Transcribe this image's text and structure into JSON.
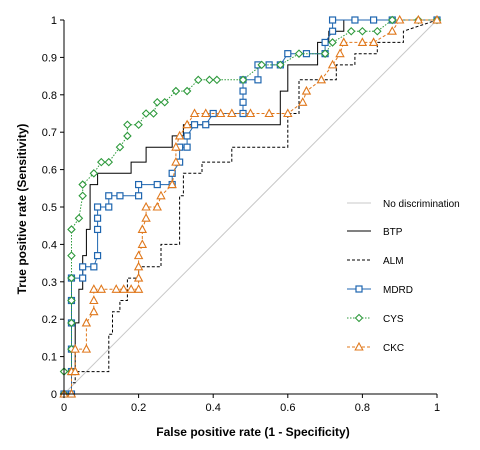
{
  "chart_data": {
    "type": "line",
    "xlabel": "False positive rate (1 - Specificity)",
    "ylabel": "True positive rate (Sensitivity)",
    "xlim": [
      0,
      1
    ],
    "ylim": [
      0,
      1
    ],
    "x_ticks": [
      "0",
      "0.2",
      "0.4",
      "0.6",
      "0.8",
      "1"
    ],
    "y_ticks": [
      "0",
      "0.1",
      "0.2",
      "0.3",
      "0.4",
      "0.5",
      "0.6",
      "0.7",
      "0.8",
      "0.9",
      "1"
    ],
    "grid": false,
    "legend_position": "right",
    "series": [
      {
        "name": "No discrimination",
        "color": "#c8c8c8",
        "style": "solid",
        "marker": "none",
        "points": [
          [
            0,
            0
          ],
          [
            1,
            1
          ]
        ]
      },
      {
        "name": "BTP",
        "color": "#000000",
        "style": "solid",
        "marker": "none",
        "points": [
          [
            0,
            0
          ],
          [
            0.02,
            0
          ],
          [
            0.02,
            0.06
          ],
          [
            0.03,
            0.06
          ],
          [
            0.03,
            0.19
          ],
          [
            0.04,
            0.19
          ],
          [
            0.04,
            0.28
          ],
          [
            0.05,
            0.28
          ],
          [
            0.05,
            0.37
          ],
          [
            0.06,
            0.37
          ],
          [
            0.06,
            0.44
          ],
          [
            0.07,
            0.44
          ],
          [
            0.07,
            0.56
          ],
          [
            0.09,
            0.56
          ],
          [
            0.09,
            0.59
          ],
          [
            0.18,
            0.59
          ],
          [
            0.18,
            0.62
          ],
          [
            0.22,
            0.62
          ],
          [
            0.22,
            0.66
          ],
          [
            0.29,
            0.66
          ],
          [
            0.29,
            0.69
          ],
          [
            0.32,
            0.69
          ],
          [
            0.32,
            0.72
          ],
          [
            0.58,
            0.72
          ],
          [
            0.58,
            0.81
          ],
          [
            0.6,
            0.81
          ],
          [
            0.6,
            0.88
          ],
          [
            0.68,
            0.88
          ],
          [
            0.68,
            0.94
          ],
          [
            0.71,
            0.94
          ],
          [
            0.71,
            0.97
          ],
          [
            0.75,
            0.97
          ],
          [
            0.75,
            1.0
          ],
          [
            1,
            1
          ]
        ]
      },
      {
        "name": "ALM",
        "color": "#000000",
        "style": "dashed",
        "marker": "none",
        "points": [
          [
            0,
            0
          ],
          [
            0.02,
            0
          ],
          [
            0.02,
            0.03
          ],
          [
            0.03,
            0.03
          ],
          [
            0.03,
            0.06
          ],
          [
            0.12,
            0.06
          ],
          [
            0.12,
            0.16
          ],
          [
            0.13,
            0.16
          ],
          [
            0.13,
            0.22
          ],
          [
            0.15,
            0.22
          ],
          [
            0.15,
            0.25
          ],
          [
            0.17,
            0.25
          ],
          [
            0.17,
            0.31
          ],
          [
            0.2,
            0.31
          ],
          [
            0.2,
            0.34
          ],
          [
            0.26,
            0.34
          ],
          [
            0.26,
            0.4
          ],
          [
            0.31,
            0.4
          ],
          [
            0.31,
            0.53
          ],
          [
            0.32,
            0.53
          ],
          [
            0.32,
            0.59
          ],
          [
            0.37,
            0.59
          ],
          [
            0.37,
            0.62
          ],
          [
            0.45,
            0.62
          ],
          [
            0.45,
            0.66
          ],
          [
            0.6,
            0.66
          ],
          [
            0.6,
            0.75
          ],
          [
            0.63,
            0.75
          ],
          [
            0.63,
            0.84
          ],
          [
            0.73,
            0.84
          ],
          [
            0.73,
            0.88
          ],
          [
            0.78,
            0.88
          ],
          [
            0.78,
            0.91
          ],
          [
            0.84,
            0.91
          ],
          [
            0.84,
            0.94
          ],
          [
            0.91,
            0.94
          ],
          [
            0.91,
            0.97
          ],
          [
            1,
            1
          ]
        ]
      },
      {
        "name": "MDRD",
        "color": "#1f66b0",
        "style": "solid",
        "marker": "square",
        "points": [
          [
            0,
            0
          ],
          [
            0.02,
            0
          ],
          [
            0.02,
            0.06
          ],
          [
            0.02,
            0.12
          ],
          [
            0.02,
            0.19
          ],
          [
            0.02,
            0.25
          ],
          [
            0.02,
            0.31
          ],
          [
            0.05,
            0.31
          ],
          [
            0.05,
            0.34
          ],
          [
            0.08,
            0.34
          ],
          [
            0.09,
            0.37
          ],
          [
            0.09,
            0.44
          ],
          [
            0.09,
            0.47
          ],
          [
            0.09,
            0.5
          ],
          [
            0.12,
            0.5
          ],
          [
            0.12,
            0.53
          ],
          [
            0.15,
            0.53
          ],
          [
            0.2,
            0.53
          ],
          [
            0.2,
            0.56
          ],
          [
            0.25,
            0.56
          ],
          [
            0.29,
            0.56
          ],
          [
            0.29,
            0.59
          ],
          [
            0.31,
            0.62
          ],
          [
            0.31,
            0.66
          ],
          [
            0.33,
            0.66
          ],
          [
            0.33,
            0.69
          ],
          [
            0.35,
            0.72
          ],
          [
            0.38,
            0.72
          ],
          [
            0.4,
            0.75
          ],
          [
            0.48,
            0.75
          ],
          [
            0.48,
            0.78
          ],
          [
            0.48,
            0.81
          ],
          [
            0.48,
            0.84
          ],
          [
            0.52,
            0.84
          ],
          [
            0.52,
            0.88
          ],
          [
            0.55,
            0.88
          ],
          [
            0.58,
            0.88
          ],
          [
            0.6,
            0.91
          ],
          [
            0.65,
            0.91
          ],
          [
            0.7,
            0.91
          ],
          [
            0.7,
            0.94
          ],
          [
            0.72,
            0.97
          ],
          [
            0.72,
            1.0
          ],
          [
            0.78,
            1.0
          ],
          [
            0.83,
            1.0
          ],
          [
            0.88,
            1.0
          ],
          [
            1,
            1
          ]
        ]
      },
      {
        "name": "CYS",
        "color": "#2e9a3c",
        "style": "dotted",
        "marker": "diamond",
        "points": [
          [
            0,
            0
          ],
          [
            0,
            0.06
          ],
          [
            0.02,
            0.06
          ],
          [
            0.02,
            0.12
          ],
          [
            0.02,
            0.19
          ],
          [
            0.02,
            0.25
          ],
          [
            0.02,
            0.31
          ],
          [
            0.02,
            0.37
          ],
          [
            0.02,
            0.44
          ],
          [
            0.04,
            0.47
          ],
          [
            0.05,
            0.53
          ],
          [
            0.05,
            0.56
          ],
          [
            0.08,
            0.59
          ],
          [
            0.1,
            0.62
          ],
          [
            0.12,
            0.62
          ],
          [
            0.15,
            0.66
          ],
          [
            0.17,
            0.69
          ],
          [
            0.17,
            0.72
          ],
          [
            0.2,
            0.72
          ],
          [
            0.22,
            0.75
          ],
          [
            0.24,
            0.75
          ],
          [
            0.25,
            0.78
          ],
          [
            0.27,
            0.78
          ],
          [
            0.3,
            0.81
          ],
          [
            0.33,
            0.81
          ],
          [
            0.36,
            0.84
          ],
          [
            0.39,
            0.84
          ],
          [
            0.41,
            0.84
          ],
          [
            0.48,
            0.84
          ],
          [
            0.53,
            0.88
          ],
          [
            0.58,
            0.88
          ],
          [
            0.63,
            0.91
          ],
          [
            0.7,
            0.91
          ],
          [
            0.72,
            0.94
          ],
          [
            0.77,
            0.97
          ],
          [
            0.8,
            0.97
          ],
          [
            0.84,
            0.97
          ],
          [
            0.88,
            1.0
          ],
          [
            0.95,
            1.0
          ],
          [
            1,
            1
          ]
        ]
      },
      {
        "name": "CKC",
        "color": "#e0781c",
        "style": "dashed",
        "marker": "triangle",
        "points": [
          [
            0,
            0
          ],
          [
            0.02,
            0
          ],
          [
            0.02,
            0.06
          ],
          [
            0.03,
            0.06
          ],
          [
            0.03,
            0.12
          ],
          [
            0.06,
            0.12
          ],
          [
            0.06,
            0.19
          ],
          [
            0.08,
            0.22
          ],
          [
            0.08,
            0.25
          ],
          [
            0.08,
            0.28
          ],
          [
            0.1,
            0.28
          ],
          [
            0.14,
            0.28
          ],
          [
            0.16,
            0.28
          ],
          [
            0.18,
            0.28
          ],
          [
            0.2,
            0.28
          ],
          [
            0.2,
            0.31
          ],
          [
            0.2,
            0.34
          ],
          [
            0.2,
            0.37
          ],
          [
            0.21,
            0.4
          ],
          [
            0.21,
            0.44
          ],
          [
            0.22,
            0.47
          ],
          [
            0.22,
            0.5
          ],
          [
            0.25,
            0.5
          ],
          [
            0.26,
            0.53
          ],
          [
            0.29,
            0.56
          ],
          [
            0.3,
            0.62
          ],
          [
            0.3,
            0.66
          ],
          [
            0.31,
            0.69
          ],
          [
            0.33,
            0.72
          ],
          [
            0.35,
            0.75
          ],
          [
            0.38,
            0.75
          ],
          [
            0.42,
            0.75
          ],
          [
            0.45,
            0.75
          ],
          [
            0.5,
            0.75
          ],
          [
            0.55,
            0.75
          ],
          [
            0.6,
            0.75
          ],
          [
            0.64,
            0.78
          ],
          [
            0.65,
            0.81
          ],
          [
            0.69,
            0.84
          ],
          [
            0.72,
            0.88
          ],
          [
            0.74,
            0.91
          ],
          [
            0.75,
            0.94
          ],
          [
            0.8,
            0.94
          ],
          [
            0.83,
            0.94
          ],
          [
            0.88,
            0.97
          ],
          [
            0.9,
            1.0
          ],
          [
            0.95,
            1.0
          ],
          [
            1,
            1
          ]
        ]
      }
    ]
  }
}
